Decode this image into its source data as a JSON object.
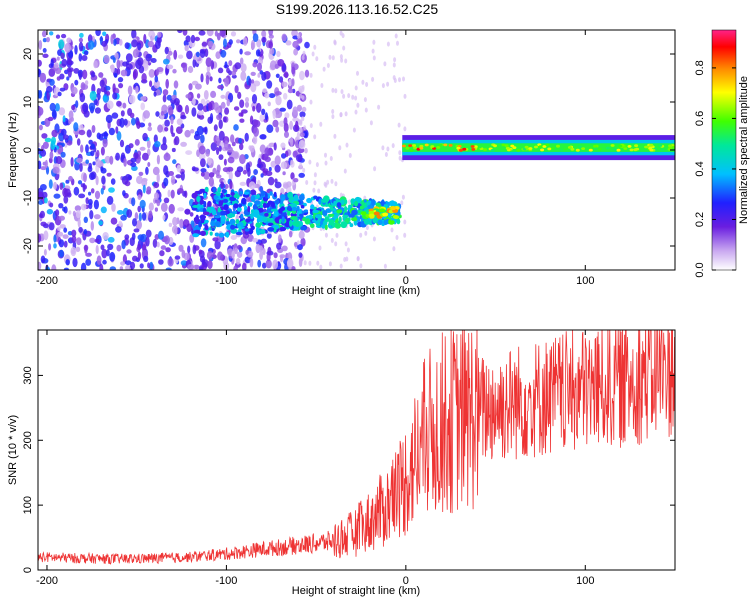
{
  "title": "S199.2026.113.16.52.C25",
  "colors": {
    "snr_line": "#ee3333",
    "axis": "#000000",
    "background": "#ffffff"
  },
  "chart_data": [
    {
      "type": "heatmap",
      "title": "",
      "xlabel": "Height of straight line (km)",
      "ylabel": "Frequency (Hz)",
      "xlim": [
        -205,
        150
      ],
      "ylim": [
        -25,
        25
      ],
      "xticks": [
        -200,
        -100,
        0,
        100
      ],
      "yticks": [
        -20,
        -10,
        0,
        10,
        20
      ],
      "colorbar": {
        "label": "Normalized spectral amplitude",
        "range": [
          0,
          0.95
        ],
        "ticks": [
          0.0,
          0.2,
          0.4,
          0.6,
          0.8
        ],
        "tick_labels": [
          "0.0",
          "0.2",
          "0.4",
          "0.6",
          "0.8"
        ]
      },
      "features": [
        {
          "name": "diffuse noise",
          "x_range": [
            -205,
            -60
          ],
          "y_range": [
            -25,
            25
          ],
          "amplitude": 0.1
        },
        {
          "name": "descending band",
          "x_start": -115,
          "x_end": -5,
          "freq_start": -13,
          "freq_end": -13,
          "peak_amplitude": 0.85
        },
        {
          "name": "flat band",
          "x_start": 0,
          "x_end": 150,
          "freq": 0.5,
          "peak_amplitude": 0.9
        }
      ]
    },
    {
      "type": "line",
      "title": "",
      "xlabel": "Height of straight line (km)",
      "ylabel": "SNR (10 * v/v)",
      "xlim": [
        -205,
        150
      ],
      "ylim": [
        0,
        370
      ],
      "xticks": [
        -200,
        -100,
        0,
        100
      ],
      "yticks": [
        0,
        100,
        200,
        300
      ],
      "series": [
        {
          "name": "SNR",
          "color": "#ee3333",
          "x": [
            -205,
            -180,
            -160,
            -140,
            -120,
            -100,
            -80,
            -60,
            -40,
            -30,
            -20,
            -10,
            -5,
            0,
            5,
            10,
            15,
            20,
            30,
            40,
            60,
            80,
            100,
            120,
            140,
            150
          ],
          "y": [
            20,
            18,
            17,
            18,
            20,
            25,
            32,
            38,
            45,
            55,
            75,
            100,
            120,
            140,
            170,
            200,
            215,
            225,
            235,
            245,
            258,
            268,
            278,
            290,
            305,
            315
          ]
        }
      ]
    }
  ]
}
